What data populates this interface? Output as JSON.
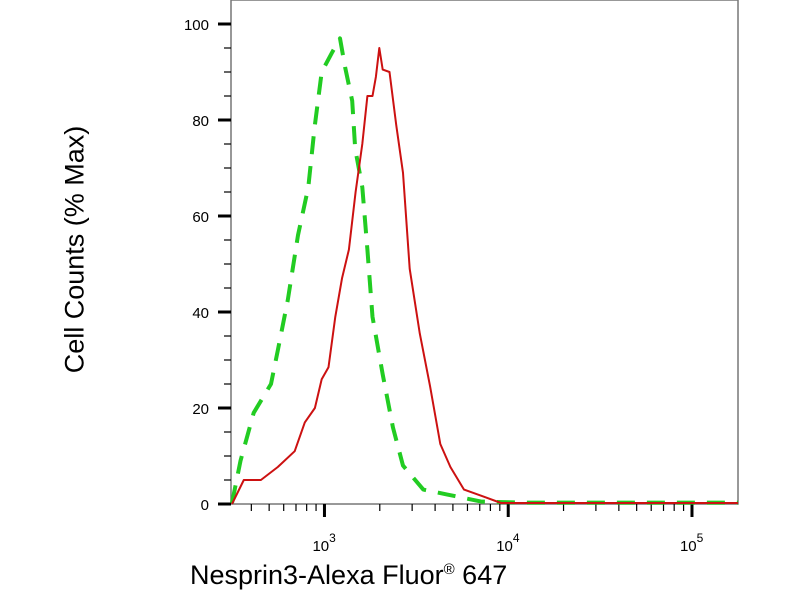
{
  "chart_data": {
    "type": "line",
    "title": "",
    "xlabel": "Nesprin3-Alexa Fluor",
    "xlabel_mark": "®",
    "xlabel_suffix": " 647",
    "ylabel": "Cell Counts (% Max)",
    "x_scale": "log",
    "xlim": [
      310,
      178000
    ],
    "ylim": [
      0,
      105
    ],
    "x_ticks": [
      {
        "value": 1000,
        "base": "10",
        "exp": "3"
      },
      {
        "value": 10000,
        "base": "10",
        "exp": "4"
      },
      {
        "value": 100000,
        "base": "10",
        "exp": "5"
      }
    ],
    "y_ticks": [
      0,
      20,
      40,
      60,
      80,
      100
    ],
    "grid": false,
    "legend": "none",
    "series": [
      {
        "color": "#22cc22",
        "style": "dashed",
        "x": [
          314,
          349,
          412,
          512,
          557,
          632,
          718,
          817,
          884,
          966,
          1097,
          1215,
          1295,
          1415,
          1470,
          1607,
          1713,
          1825,
          2074,
          2356,
          2674,
          3449,
          4624,
          7128,
          12300,
          178000
        ],
        "y": [
          0.2,
          9,
          19,
          25,
          32,
          42.5,
          56,
          66,
          78.5,
          90,
          94,
          97,
          91,
          84,
          74,
          66,
          53,
          39,
          27,
          16,
          8,
          3,
          2,
          0.5,
          0.3,
          0.3
        ]
      },
      {
        "color": "#cc1111",
        "style": "solid",
        "x": [
          314,
          364,
          451,
          557,
          689,
          782,
          887,
          966,
          1052,
          1145,
          1246,
          1358,
          1477,
          1607,
          1713,
          1825,
          1905,
          1988,
          2074,
          2258,
          2457,
          2674,
          2911,
          3303,
          3757,
          4268,
          4846,
          5745,
          7396,
          9139,
          178000
        ],
        "y": [
          0,
          5,
          5,
          7.7,
          11,
          17,
          20,
          26,
          28.5,
          39,
          47,
          53,
          65,
          75,
          85,
          85,
          89,
          95,
          90.5,
          90,
          79,
          69,
          49,
          35.5,
          24.5,
          12.5,
          7.7,
          3,
          1.5,
          0.2,
          0.2
        ]
      }
    ]
  }
}
